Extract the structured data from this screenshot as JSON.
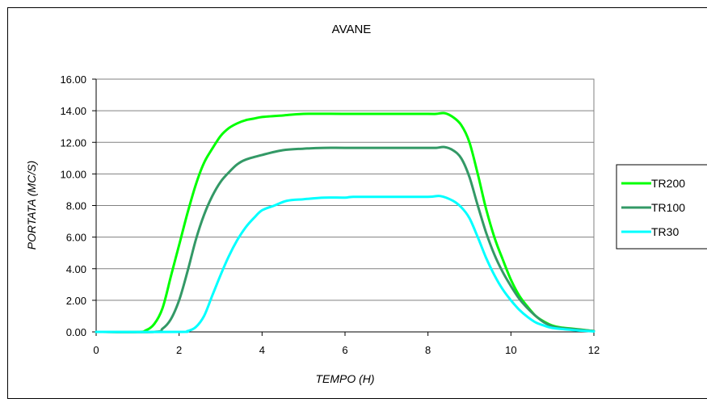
{
  "chart_data": {
    "type": "line",
    "title": "AVANE",
    "xlabel": "TEMPO (H)",
    "ylabel": "PORTATA (MC/S)",
    "xlim": [
      0,
      12
    ],
    "ylim": [
      0,
      16
    ],
    "x_ticks": [
      0,
      2,
      4,
      6,
      8,
      10,
      12
    ],
    "y_ticks": [
      0,
      2,
      4,
      6,
      8,
      10,
      12,
      14,
      16
    ],
    "x_tick_labels": [
      "0",
      "2",
      "4",
      "6",
      "8",
      "10",
      "12"
    ],
    "y_tick_labels": [
      "0.00",
      "2.00",
      "4.00",
      "6.00",
      "8.00",
      "10.00",
      "12.00",
      "14.00",
      "16.00"
    ],
    "grid": "horizontal",
    "legend_position": "right",
    "series": [
      {
        "name": "TR200",
        "color": "#00FF00",
        "points": [
          [
            0,
            0
          ],
          [
            1.0,
            0
          ],
          [
            1.2,
            0.1
          ],
          [
            1.4,
            0.5
          ],
          [
            1.6,
            1.5
          ],
          [
            1.8,
            3.5
          ],
          [
            2.0,
            5.5
          ],
          [
            2.2,
            7.5
          ],
          [
            2.4,
            9.3
          ],
          [
            2.6,
            10.7
          ],
          [
            2.8,
            11.6
          ],
          [
            3.0,
            12.4
          ],
          [
            3.2,
            12.9
          ],
          [
            3.4,
            13.2
          ],
          [
            3.6,
            13.4
          ],
          [
            3.8,
            13.5
          ],
          [
            4.0,
            13.6
          ],
          [
            4.5,
            13.7
          ],
          [
            5.0,
            13.8
          ],
          [
            6.0,
            13.8
          ],
          [
            7.0,
            13.8
          ],
          [
            8.0,
            13.8
          ],
          [
            8.2,
            13.8
          ],
          [
            8.4,
            13.85
          ],
          [
            8.6,
            13.6
          ],
          [
            8.8,
            13.1
          ],
          [
            9.0,
            12.0
          ],
          [
            9.2,
            10.0
          ],
          [
            9.4,
            7.8
          ],
          [
            9.6,
            6.0
          ],
          [
            9.8,
            4.6
          ],
          [
            10.0,
            3.3
          ],
          [
            10.2,
            2.3
          ],
          [
            10.4,
            1.6
          ],
          [
            10.6,
            1.0
          ],
          [
            10.8,
            0.65
          ],
          [
            11.0,
            0.4
          ],
          [
            11.2,
            0.28
          ],
          [
            11.5,
            0.2
          ],
          [
            12.0,
            0.05
          ]
        ]
      },
      {
        "name": "TR100",
        "color": "#339966",
        "points": [
          [
            0,
            0
          ],
          [
            1.4,
            0
          ],
          [
            1.6,
            0.2
          ],
          [
            1.8,
            0.8
          ],
          [
            2.0,
            2.0
          ],
          [
            2.2,
            3.8
          ],
          [
            2.4,
            5.8
          ],
          [
            2.6,
            7.4
          ],
          [
            2.8,
            8.6
          ],
          [
            3.0,
            9.5
          ],
          [
            3.2,
            10.1
          ],
          [
            3.4,
            10.6
          ],
          [
            3.6,
            10.9
          ],
          [
            4.0,
            11.2
          ],
          [
            4.5,
            11.5
          ],
          [
            5.0,
            11.6
          ],
          [
            5.5,
            11.65
          ],
          [
            6.0,
            11.65
          ],
          [
            7.0,
            11.65
          ],
          [
            8.0,
            11.65
          ],
          [
            8.2,
            11.65
          ],
          [
            8.4,
            11.7
          ],
          [
            8.6,
            11.5
          ],
          [
            8.8,
            11.0
          ],
          [
            9.0,
            9.8
          ],
          [
            9.2,
            8.0
          ],
          [
            9.4,
            6.3
          ],
          [
            9.6,
            4.9
          ],
          [
            9.8,
            3.8
          ],
          [
            10.0,
            2.9
          ],
          [
            10.2,
            2.1
          ],
          [
            10.4,
            1.5
          ],
          [
            10.6,
            1.0
          ],
          [
            10.8,
            0.6
          ],
          [
            11.0,
            0.35
          ],
          [
            11.2,
            0.25
          ],
          [
            11.5,
            0.18
          ],
          [
            12.0,
            0.05
          ]
        ]
      },
      {
        "name": "TR30",
        "color": "#00FFFF",
        "points": [
          [
            0,
            0
          ],
          [
            2.0,
            0
          ],
          [
            2.2,
            0.05
          ],
          [
            2.4,
            0.3
          ],
          [
            2.6,
            1.0
          ],
          [
            2.8,
            2.3
          ],
          [
            3.0,
            3.6
          ],
          [
            3.2,
            4.8
          ],
          [
            3.4,
            5.8
          ],
          [
            3.6,
            6.6
          ],
          [
            3.8,
            7.2
          ],
          [
            4.0,
            7.7
          ],
          [
            4.3,
            8.0
          ],
          [
            4.6,
            8.3
          ],
          [
            5.0,
            8.4
          ],
          [
            5.5,
            8.5
          ],
          [
            6.0,
            8.5
          ],
          [
            6.2,
            8.55
          ],
          [
            7.0,
            8.55
          ],
          [
            8.0,
            8.55
          ],
          [
            8.3,
            8.6
          ],
          [
            8.6,
            8.3
          ],
          [
            8.8,
            7.9
          ],
          [
            9.0,
            7.2
          ],
          [
            9.2,
            6.0
          ],
          [
            9.4,
            4.7
          ],
          [
            9.6,
            3.6
          ],
          [
            9.8,
            2.7
          ],
          [
            10.0,
            2.0
          ],
          [
            10.2,
            1.4
          ],
          [
            10.4,
            0.95
          ],
          [
            10.6,
            0.6
          ],
          [
            10.8,
            0.4
          ],
          [
            11.0,
            0.25
          ],
          [
            11.5,
            0.12
          ],
          [
            12.0,
            0.03
          ]
        ]
      }
    ]
  }
}
